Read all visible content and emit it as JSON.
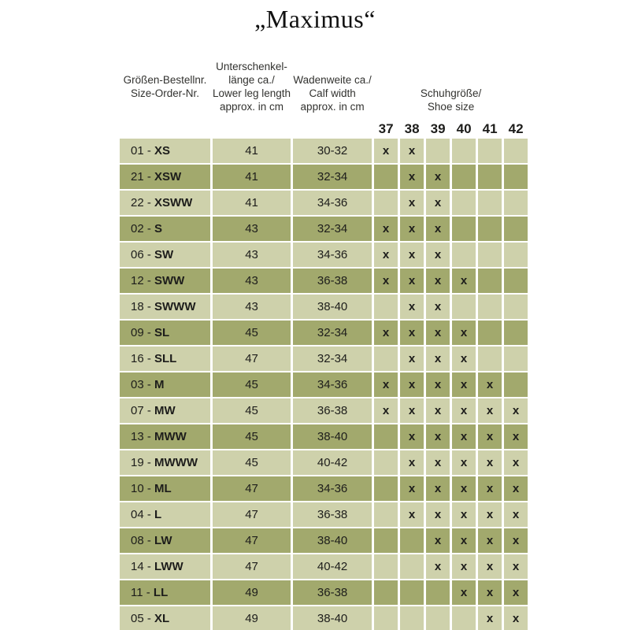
{
  "title": "„Maximus“",
  "table": {
    "headers": {
      "col1": [
        "Größen-Bestellnr.",
        "Size-Order-Nr."
      ],
      "col2": [
        "Unterschenkel-",
        "länge ca./",
        "Lower leg length",
        "approx. in cm"
      ],
      "col3": [
        "Wadenweite ca./",
        "Calf width",
        "approx. in cm"
      ],
      "shoe_group": [
        "Schuhgröße/",
        "Shoe size"
      ],
      "shoe_sizes": [
        "37",
        "38",
        "39",
        "40",
        "41",
        "42"
      ]
    },
    "label_separator": " - ",
    "x_mark": "x",
    "rows": [
      {
        "order_nr": "01",
        "size_code": "XS",
        "leg_length": "41",
        "calf_width": "30-32",
        "marks": [
          true,
          true,
          false,
          false,
          false,
          false
        ]
      },
      {
        "order_nr": "21",
        "size_code": "XSW",
        "leg_length": "41",
        "calf_width": "32-34",
        "marks": [
          false,
          true,
          true,
          false,
          false,
          false
        ]
      },
      {
        "order_nr": "22",
        "size_code": "XSWW",
        "leg_length": "41",
        "calf_width": "34-36",
        "marks": [
          false,
          true,
          true,
          false,
          false,
          false
        ]
      },
      {
        "order_nr": "02",
        "size_code": "S",
        "leg_length": "43",
        "calf_width": "32-34",
        "marks": [
          true,
          true,
          true,
          false,
          false,
          false
        ]
      },
      {
        "order_nr": "06",
        "size_code": "SW",
        "leg_length": "43",
        "calf_width": "34-36",
        "marks": [
          true,
          true,
          true,
          false,
          false,
          false
        ]
      },
      {
        "order_nr": "12",
        "size_code": "SWW",
        "leg_length": "43",
        "calf_width": "36-38",
        "marks": [
          true,
          true,
          true,
          true,
          false,
          false
        ]
      },
      {
        "order_nr": "18",
        "size_code": "SWWW",
        "leg_length": "43",
        "calf_width": "38-40",
        "marks": [
          false,
          true,
          true,
          false,
          false,
          false
        ]
      },
      {
        "order_nr": "09",
        "size_code": "SL",
        "leg_length": "45",
        "calf_width": "32-34",
        "marks": [
          true,
          true,
          true,
          true,
          false,
          false
        ]
      },
      {
        "order_nr": "16",
        "size_code": "SLL",
        "leg_length": "47",
        "calf_width": "32-34",
        "marks": [
          false,
          true,
          true,
          true,
          false,
          false
        ]
      },
      {
        "order_nr": "03",
        "size_code": "M",
        "leg_length": "45",
        "calf_width": "34-36",
        "marks": [
          true,
          true,
          true,
          true,
          true,
          false
        ]
      },
      {
        "order_nr": "07",
        "size_code": "MW",
        "leg_length": "45",
        "calf_width": "36-38",
        "marks": [
          true,
          true,
          true,
          true,
          true,
          true
        ]
      },
      {
        "order_nr": "13",
        "size_code": "MWW",
        "leg_length": "45",
        "calf_width": "38-40",
        "marks": [
          false,
          true,
          true,
          true,
          true,
          true
        ]
      },
      {
        "order_nr": "19",
        "size_code": "MWWW",
        "leg_length": "45",
        "calf_width": "40-42",
        "marks": [
          false,
          true,
          true,
          true,
          true,
          true
        ]
      },
      {
        "order_nr": "10",
        "size_code": "ML",
        "leg_length": "47",
        "calf_width": "34-36",
        "marks": [
          false,
          true,
          true,
          true,
          true,
          true
        ]
      },
      {
        "order_nr": "04",
        "size_code": "L",
        "leg_length": "47",
        "calf_width": "36-38",
        "marks": [
          false,
          true,
          true,
          true,
          true,
          true
        ]
      },
      {
        "order_nr": "08",
        "size_code": "LW",
        "leg_length": "47",
        "calf_width": "38-40",
        "marks": [
          false,
          false,
          true,
          true,
          true,
          true
        ]
      },
      {
        "order_nr": "14",
        "size_code": "LWW",
        "leg_length": "47",
        "calf_width": "40-42",
        "marks": [
          false,
          false,
          true,
          true,
          true,
          true
        ]
      },
      {
        "order_nr": "11",
        "size_code": "LL",
        "leg_length": "49",
        "calf_width": "36-38",
        "marks": [
          false,
          false,
          false,
          true,
          true,
          true
        ]
      },
      {
        "order_nr": "05",
        "size_code": "XL",
        "leg_length": "49",
        "calf_width": "38-40",
        "marks": [
          false,
          false,
          false,
          false,
          true,
          true
        ]
      }
    ],
    "colors": {
      "row_light": "#ced1ab",
      "row_dark": "#a2a96d",
      "text": "#1d1d1b",
      "header_text": "#32322f",
      "background": "#ffffff"
    }
  }
}
